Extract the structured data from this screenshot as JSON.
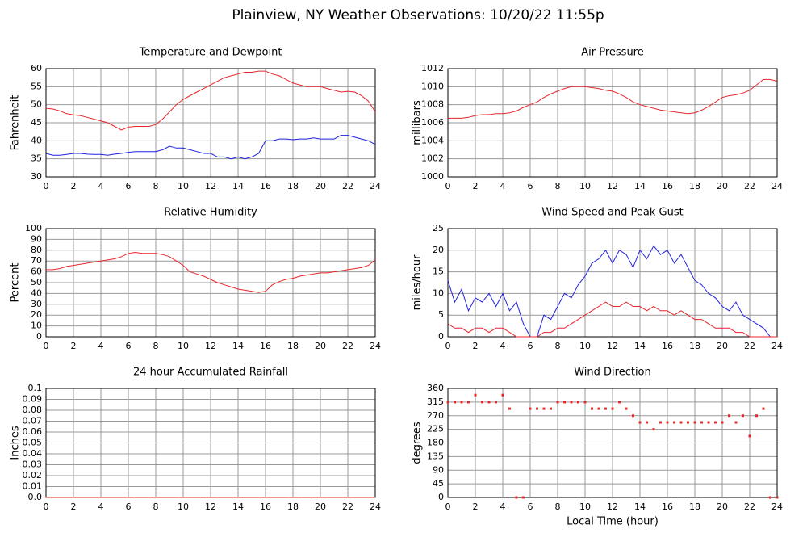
{
  "title": "Plainview, NY Weather Observations: 10/20/22 11:55p",
  "chart_data": [
    {
      "type": "line",
      "title": "Temperature and Dewpoint",
      "ylabel": "Fahrenheit",
      "ylim": [
        30,
        60
      ],
      "yticks": [
        30,
        35,
        40,
        45,
        50,
        55,
        60
      ],
      "xlim": [
        0,
        24
      ],
      "xticks": [
        0,
        2,
        4,
        6,
        8,
        10,
        12,
        14,
        16,
        18,
        20,
        22,
        24
      ],
      "grid": true,
      "x": [
        0,
        0.5,
        1,
        1.5,
        2,
        2.5,
        3,
        3.5,
        4,
        4.5,
        5,
        5.5,
        6,
        6.5,
        7,
        7.5,
        8,
        8.5,
        9,
        9.5,
        10,
        10.5,
        11,
        11.5,
        12,
        12.5,
        13,
        13.5,
        14,
        14.5,
        15,
        15.5,
        16,
        16.5,
        17,
        17.5,
        18,
        18.5,
        19,
        19.5,
        20,
        20.5,
        21,
        21.5,
        22,
        22.5,
        23,
        23.5,
        24
      ],
      "series": [
        {
          "color": "#e8262a",
          "values": [
            49,
            48.8,
            48.3,
            47.5,
            47.2,
            47,
            46.5,
            46,
            45.5,
            45,
            44,
            43,
            43.8,
            44,
            44,
            44,
            44.5,
            46,
            48,
            50,
            51.5,
            52.5,
            53.5,
            54.5,
            55.5,
            56.5,
            57.5,
            58,
            58.5,
            59,
            59,
            59.3,
            59.3,
            58.5,
            58,
            57,
            56,
            55.5,
            55,
            55,
            55,
            54.5,
            54,
            53.5,
            53.7,
            53.5,
            52.5,
            51,
            48
          ]
        },
        {
          "color": "#2020e0",
          "values": [
            36.5,
            36,
            36,
            36.2,
            36.5,
            36.5,
            36.3,
            36.2,
            36.2,
            36,
            36.3,
            36.5,
            36.8,
            37,
            37,
            37,
            37,
            37.5,
            38.5,
            38,
            38,
            37.5,
            37,
            36.5,
            36.5,
            35.5,
            35.5,
            35,
            35.5,
            35,
            35.5,
            36.5,
            40,
            40,
            40.5,
            40.5,
            40.3,
            40.5,
            40.5,
            40.8,
            40.5,
            40.5,
            40.5,
            41.5,
            41.5,
            41,
            40.5,
            40,
            39
          ]
        }
      ]
    },
    {
      "type": "line",
      "title": "Air Pressure",
      "ylabel": "millibars",
      "ylim": [
        1000,
        1012
      ],
      "yticks": [
        1000,
        1002,
        1004,
        1006,
        1008,
        1010,
        1012
      ],
      "xlim": [
        0,
        24
      ],
      "xticks": [
        0,
        2,
        4,
        6,
        8,
        10,
        12,
        14,
        16,
        18,
        20,
        22,
        24
      ],
      "grid": true,
      "x": [
        0,
        0.5,
        1,
        1.5,
        2,
        2.5,
        3,
        3.5,
        4,
        4.5,
        5,
        5.5,
        6,
        6.5,
        7,
        7.5,
        8,
        8.5,
        9,
        9.5,
        10,
        10.5,
        11,
        11.5,
        12,
        12.5,
        13,
        13.5,
        14,
        14.5,
        15,
        15.5,
        16,
        16.5,
        17,
        17.5,
        18,
        18.5,
        19,
        19.5,
        20,
        20.5,
        21,
        21.5,
        22,
        22.5,
        23,
        23.5,
        24
      ],
      "series": [
        {
          "color": "#e8262a",
          "values": [
            1006.5,
            1006.5,
            1006.5,
            1006.6,
            1006.8,
            1006.9,
            1006.9,
            1007,
            1007,
            1007.1,
            1007.3,
            1007.7,
            1008,
            1008.3,
            1008.8,
            1009.2,
            1009.5,
            1009.8,
            1010,
            1010,
            1010,
            1009.9,
            1009.8,
            1009.6,
            1009.5,
            1009.2,
            1008.8,
            1008.3,
            1008,
            1007.8,
            1007.6,
            1007.4,
            1007.3,
            1007.2,
            1007.1,
            1007,
            1007.1,
            1007.4,
            1007.8,
            1008.3,
            1008.8,
            1009,
            1009.1,
            1009.3,
            1009.6,
            1010.2,
            1010.8,
            1010.8,
            1010.6
          ]
        }
      ]
    },
    {
      "type": "line",
      "title": "Relative Humidity",
      "ylabel": "Percent",
      "ylim": [
        0,
        100
      ],
      "yticks": [
        0,
        10,
        20,
        30,
        40,
        50,
        60,
        70,
        80,
        90,
        100
      ],
      "xlim": [
        0,
        24
      ],
      "xticks": [
        0,
        2,
        4,
        6,
        8,
        10,
        12,
        14,
        16,
        18,
        20,
        22,
        24
      ],
      "grid": true,
      "x": [
        0,
        0.5,
        1,
        1.5,
        2,
        2.5,
        3,
        3.5,
        4,
        4.5,
        5,
        5.5,
        6,
        6.5,
        7,
        7.5,
        8,
        8.5,
        9,
        9.5,
        10,
        10.5,
        11,
        11.5,
        12,
        12.5,
        13,
        13.5,
        14,
        14.5,
        15,
        15.5,
        16,
        16.5,
        17,
        17.5,
        18,
        18.5,
        19,
        19.5,
        20,
        20.5,
        21,
        21.5,
        22,
        22.5,
        23,
        23.5,
        24
      ],
      "series": [
        {
          "color": "#e8262a",
          "values": [
            62,
            62,
            63,
            65,
            66,
            67,
            68,
            69,
            70,
            71,
            72,
            74,
            77,
            78,
            77,
            77,
            77,
            76,
            74,
            70,
            66,
            60,
            58,
            56,
            53,
            50,
            48,
            46,
            44,
            43,
            42,
            41,
            42,
            48,
            51,
            53,
            54,
            56,
            57,
            58,
            59,
            59,
            60,
            61,
            62,
            63,
            64,
            66,
            71
          ]
        }
      ]
    },
    {
      "type": "line",
      "title": "Wind Speed and Peak Gust",
      "ylabel": "miles/hour",
      "ylim": [
        0,
        25
      ],
      "yticks": [
        0,
        5,
        10,
        15,
        20,
        25
      ],
      "xlim": [
        0,
        24
      ],
      "xticks": [
        0,
        2,
        4,
        6,
        8,
        10,
        12,
        14,
        16,
        18,
        20,
        22,
        24
      ],
      "grid": true,
      "x": [
        0,
        0.5,
        1,
        1.5,
        2,
        2.5,
        3,
        3.5,
        4,
        4.5,
        5,
        5.5,
        6,
        6.5,
        7,
        7.5,
        8,
        8.5,
        9,
        9.5,
        10,
        10.5,
        11,
        11.5,
        12,
        12.5,
        13,
        13.5,
        14,
        14.5,
        15,
        15.5,
        16,
        16.5,
        17,
        17.5,
        18,
        18.5,
        19,
        19.5,
        20,
        20.5,
        21,
        21.5,
        22,
        22.5,
        23,
        23.5,
        24
      ],
      "series": [
        {
          "color": "#2020e0",
          "values": [
            13,
            8,
            11,
            6,
            9,
            8,
            10,
            7,
            10,
            6,
            8,
            3,
            0,
            0,
            5,
            4,
            7,
            10,
            9,
            12,
            14,
            17,
            18,
            20,
            17,
            20,
            19,
            16,
            20,
            18,
            21,
            19,
            20,
            17,
            19,
            16,
            13,
            12,
            10,
            9,
            7,
            6,
            8,
            5,
            4,
            3,
            2,
            0,
            0
          ]
        },
        {
          "color": "#e8262a",
          "values": [
            3,
            2,
            2,
            1,
            2,
            2,
            1,
            2,
            2,
            1,
            0,
            0,
            0,
            0,
            1,
            1,
            2,
            2,
            3,
            4,
            5,
            6,
            7,
            8,
            7,
            7,
            8,
            7,
            7,
            6,
            7,
            6,
            6,
            5,
            6,
            5,
            4,
            4,
            3,
            2,
            2,
            2,
            1,
            1,
            0,
            0,
            0,
            0,
            0
          ]
        }
      ]
    },
    {
      "type": "line",
      "title": "24 hour Accumulated Rainfall",
      "ylabel": "Inches",
      "ylim": [
        0,
        0.1
      ],
      "yticks": [
        {
          "value": 0,
          "label": "0.0"
        },
        0.01,
        0.02,
        0.03,
        0.04,
        0.05,
        0.06,
        0.07,
        0.08,
        0.09,
        0.1
      ],
      "xlim": [
        0,
        24
      ],
      "xticks": [
        0,
        2,
        4,
        6,
        8,
        10,
        12,
        14,
        16,
        18,
        20,
        22,
        24
      ],
      "grid": true,
      "x": [
        0,
        24
      ],
      "series": [
        {
          "color": "#e8262a",
          "values": [
            0,
            0
          ]
        }
      ]
    },
    {
      "type": "scatter",
      "title": "Wind Direction",
      "ylabel": "degrees",
      "xlabel": "Local Time (hour)",
      "ylim": [
        0,
        360
      ],
      "yticks": [
        0,
        45,
        90,
        135,
        180,
        225,
        270,
        315,
        360
      ],
      "xlim": [
        0,
        24
      ],
      "xticks": [
        0,
        2,
        4,
        6,
        8,
        10,
        12,
        14,
        16,
        18,
        20,
        22,
        24
      ],
      "grid": true,
      "x": [
        0,
        0.5,
        1,
        1.5,
        2,
        2.5,
        3,
        3.5,
        4,
        4.5,
        5,
        5.5,
        6,
        6.5,
        7,
        7.5,
        8,
        8.5,
        9,
        9.5,
        10,
        10.5,
        11,
        11.5,
        12,
        12.5,
        13,
        13.5,
        14,
        14.5,
        15,
        15.5,
        16,
        16.5,
        17,
        17.5,
        18,
        18.5,
        19,
        19.5,
        20,
        20.5,
        21,
        21.5,
        22,
        22.5,
        23,
        23.5,
        24
      ],
      "series": [
        {
          "color": "#e8262a",
          "values": [
            315,
            315,
            315,
            315,
            338,
            315,
            315,
            315,
            338,
            293,
            0,
            0,
            293,
            293,
            293,
            293,
            315,
            315,
            315,
            315,
            315,
            293,
            293,
            293,
            293,
            315,
            293,
            270,
            248,
            248,
            225,
            248,
            248,
            248,
            248,
            248,
            248,
            248,
            248,
            248,
            248,
            270,
            248,
            270,
            203,
            270,
            293,
            0,
            0
          ]
        }
      ]
    }
  ]
}
